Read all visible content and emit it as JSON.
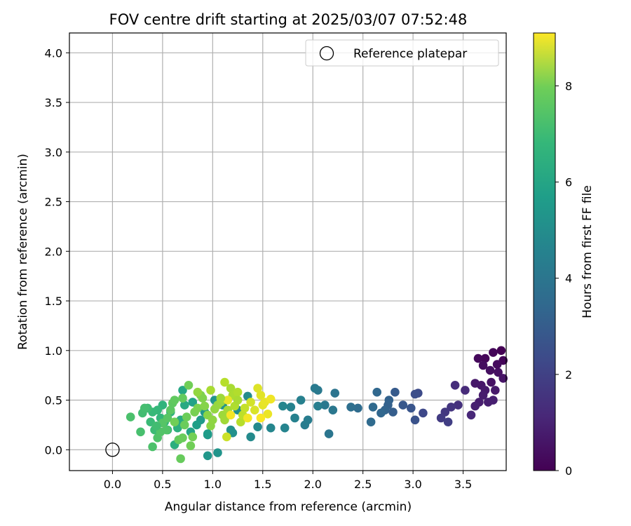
{
  "chart_data": {
    "type": "scatter",
    "title": "FOV centre drift starting at 2025/03/07 07:52:48",
    "xlabel": "Angular distance from reference (arcmin)",
    "ylabel": "Rotation from reference (arcmin)",
    "xlim": [
      -0.43,
      3.93
    ],
    "ylim": [
      -0.21,
      4.2
    ],
    "x_ticks": [
      "0.0",
      "0.5",
      "1.0",
      "1.5",
      "2.0",
      "2.5",
      "3.0",
      "3.5"
    ],
    "y_ticks": [
      "0.0",
      "0.5",
      "1.0",
      "1.5",
      "2.0",
      "2.5",
      "3.0",
      "3.5",
      "4.0"
    ],
    "grid": true,
    "legend": {
      "placement": "top-right",
      "entries": [
        "Reference platepar"
      ]
    },
    "colorbar": {
      "label": "Hours from first FF file",
      "colormap": "viridis",
      "range": [
        0,
        9.1
      ],
      "ticks": [
        "0",
        "2",
        "4",
        "6",
        "8"
      ]
    },
    "reference_point": {
      "x": 0.0,
      "y": 0.0
    },
    "points": [
      [
        3.88,
        1.0,
        0.0
      ],
      [
        3.8,
        0.98,
        0.1
      ],
      [
        3.72,
        0.92,
        0.15
      ],
      [
        3.65,
        0.92,
        0.2
      ],
      [
        3.7,
        0.85,
        0.3
      ],
      [
        3.77,
        0.8,
        0.35
      ],
      [
        3.85,
        0.78,
        0.4
      ],
      [
        3.78,
        0.68,
        0.45
      ],
      [
        3.9,
        0.72,
        0.5
      ],
      [
        3.68,
        0.65,
        0.55
      ],
      [
        3.62,
        0.67,
        0.6
      ],
      [
        3.72,
        0.6,
        0.62
      ],
      [
        3.82,
        0.6,
        0.65
      ],
      [
        3.7,
        0.55,
        0.7
      ],
      [
        3.66,
        0.48,
        0.72
      ],
      [
        3.75,
        0.48,
        0.75
      ],
      [
        3.8,
        0.5,
        0.78
      ],
      [
        3.62,
        0.44,
        0.8
      ],
      [
        3.9,
        0.9,
        0.1
      ],
      [
        3.84,
        0.86,
        0.25
      ],
      [
        3.58,
        0.35,
        1.0
      ],
      [
        3.52,
        0.6,
        1.1
      ],
      [
        3.42,
        0.65,
        1.2
      ],
      [
        3.45,
        0.45,
        1.3
      ],
      [
        3.38,
        0.43,
        1.4
      ],
      [
        3.32,
        0.38,
        1.5
      ],
      [
        3.28,
        0.32,
        1.6
      ],
      [
        3.35,
        0.28,
        1.7
      ],
      [
        3.1,
        0.37,
        2.0
      ],
      [
        3.05,
        0.57,
        2.1
      ],
      [
        3.02,
        0.56,
        2.2
      ],
      [
        3.02,
        0.3,
        2.3
      ],
      [
        2.98,
        0.42,
        2.4
      ],
      [
        2.9,
        0.45,
        2.5
      ],
      [
        2.82,
        0.58,
        2.6
      ],
      [
        2.8,
        0.38,
        2.7
      ],
      [
        2.75,
        0.45,
        2.8
      ],
      [
        2.76,
        0.5,
        2.85
      ],
      [
        2.72,
        0.4,
        2.9
      ],
      [
        2.68,
        0.37,
        3.0
      ],
      [
        2.64,
        0.58,
        3.05
      ],
      [
        2.6,
        0.43,
        3.1
      ],
      [
        2.58,
        0.28,
        3.15
      ],
      [
        2.45,
        0.42,
        3.2
      ],
      [
        2.38,
        0.43,
        3.3
      ],
      [
        2.22,
        0.57,
        3.5
      ],
      [
        2.16,
        0.16,
        3.55
      ],
      [
        2.2,
        0.4,
        3.6
      ],
      [
        2.12,
        0.45,
        3.65
      ],
      [
        2.05,
        0.6,
        3.7
      ],
      [
        2.02,
        0.62,
        3.75
      ],
      [
        1.92,
        0.25,
        3.8
      ],
      [
        1.95,
        0.3,
        3.85
      ],
      [
        2.05,
        0.44,
        3.9
      ],
      [
        1.88,
        0.5,
        3.95
      ],
      [
        1.82,
        0.32,
        4.0
      ],
      [
        1.78,
        0.43,
        4.05
      ],
      [
        1.72,
        0.22,
        4.1
      ],
      [
        1.7,
        0.44,
        4.15
      ],
      [
        1.58,
        0.22,
        4.2
      ],
      [
        1.45,
        0.23,
        4.3
      ],
      [
        1.38,
        0.13,
        4.35
      ],
      [
        1.35,
        0.54,
        4.4
      ],
      [
        1.25,
        0.4,
        4.5
      ],
      [
        1.2,
        0.17,
        4.55
      ],
      [
        1.18,
        0.2,
        4.6
      ],
      [
        1.1,
        0.45,
        4.65
      ],
      [
        1.05,
        -0.03,
        4.7
      ],
      [
        1.02,
        0.5,
        4.75
      ],
      [
        0.95,
        -0.06,
        4.8
      ],
      [
        0.95,
        0.15,
        4.85
      ],
      [
        0.92,
        0.38,
        4.9
      ],
      [
        0.88,
        0.3,
        4.95
      ],
      [
        0.84,
        0.25,
        5.1
      ],
      [
        0.8,
        0.48,
        5.2
      ],
      [
        0.78,
        0.18,
        5.3
      ],
      [
        0.7,
        0.6,
        5.4
      ],
      [
        0.72,
        0.45,
        5.5
      ],
      [
        0.68,
        0.3,
        5.6
      ],
      [
        0.62,
        0.05,
        5.7
      ],
      [
        0.65,
        0.22,
        5.75
      ],
      [
        0.58,
        0.38,
        5.8
      ],
      [
        0.55,
        0.2,
        5.85
      ],
      [
        0.5,
        0.45,
        5.9
      ],
      [
        0.52,
        0.28,
        5.95
      ],
      [
        0.48,
        0.32,
        6.0
      ],
      [
        0.45,
        0.4,
        6.05
      ],
      [
        0.4,
        0.38,
        6.1
      ],
      [
        0.38,
        0.28,
        6.15
      ],
      [
        0.42,
        0.2,
        6.2
      ],
      [
        0.35,
        0.42,
        6.25
      ],
      [
        0.3,
        0.37,
        6.3
      ],
      [
        0.32,
        0.42,
        6.35
      ],
      [
        0.28,
        0.18,
        6.4
      ],
      [
        0.18,
        0.33,
        6.45
      ],
      [
        0.4,
        0.03,
        6.5
      ],
      [
        0.45,
        0.12,
        6.55
      ],
      [
        0.48,
        0.18,
        6.6
      ],
      [
        0.5,
        0.27,
        6.65
      ],
      [
        0.55,
        0.32,
        6.7
      ],
      [
        0.58,
        0.4,
        6.75
      ],
      [
        0.6,
        0.47,
        6.8
      ],
      [
        0.62,
        0.5,
        6.85
      ],
      [
        0.66,
        0.1,
        6.9
      ],
      [
        0.68,
        -0.09,
        6.95
      ],
      [
        0.7,
        0.12,
        7.0
      ],
      [
        0.72,
        0.25,
        7.0
      ],
      [
        0.74,
        0.33,
        7.05
      ],
      [
        0.76,
        0.65,
        7.1
      ],
      [
        0.78,
        0.04,
        7.1
      ],
      [
        0.8,
        0.13,
        7.15
      ],
      [
        0.82,
        0.38,
        7.2
      ],
      [
        0.85,
        0.42,
        7.25
      ],
      [
        0.88,
        0.55,
        7.3
      ],
      [
        0.9,
        0.52,
        7.35
      ],
      [
        0.92,
        0.44,
        7.4
      ],
      [
        0.95,
        0.35,
        7.45
      ],
      [
        0.98,
        0.24,
        7.5
      ],
      [
        1.0,
        0.3,
        7.55
      ],
      [
        1.02,
        0.41,
        7.6
      ],
      [
        1.05,
        0.45,
        7.65
      ],
      [
        1.08,
        0.48,
        7.7
      ],
      [
        1.1,
        0.35,
        7.75
      ],
      [
        1.12,
        0.3,
        7.8
      ],
      [
        1.15,
        0.4,
        7.85
      ],
      [
        1.18,
        0.62,
        7.9
      ],
      [
        1.2,
        0.55,
        7.95
      ],
      [
        1.22,
        0.44,
        8.0
      ],
      [
        1.25,
        0.58,
        8.05
      ],
      [
        1.28,
        0.28,
        8.1
      ],
      [
        1.3,
        0.35,
        8.2
      ],
      [
        1.32,
        0.42,
        8.3
      ],
      [
        0.98,
        0.6,
        7.9
      ],
      [
        0.85,
        0.58,
        7.6
      ],
      [
        1.12,
        0.68,
        8.1
      ],
      [
        1.14,
        0.13,
        8.4
      ],
      [
        1.38,
        0.48,
        8.5
      ],
      [
        1.42,
        0.4,
        8.6
      ],
      [
        1.45,
        0.62,
        8.65
      ],
      [
        1.48,
        0.55,
        8.7
      ],
      [
        1.5,
        0.45,
        8.75
      ],
      [
        1.52,
        0.48,
        8.8
      ],
      [
        1.55,
        0.36,
        8.85
      ],
      [
        1.58,
        0.51,
        8.9
      ],
      [
        1.35,
        0.32,
        8.95
      ],
      [
        1.18,
        0.35,
        9.0
      ],
      [
        1.48,
        0.32,
        9.05
      ],
      [
        1.15,
        0.5,
        8.8
      ],
      [
        0.62,
        0.28,
        7.1
      ],
      [
        0.54,
        0.2,
        6.6
      ],
      [
        0.44,
        0.24,
        6.3
      ],
      [
        0.95,
        0.16,
        5.0
      ],
      [
        1.08,
        0.52,
        7.75
      ],
      [
        1.25,
        0.5,
        7.9
      ],
      [
        0.7,
        0.52,
        6.9
      ]
    ]
  }
}
